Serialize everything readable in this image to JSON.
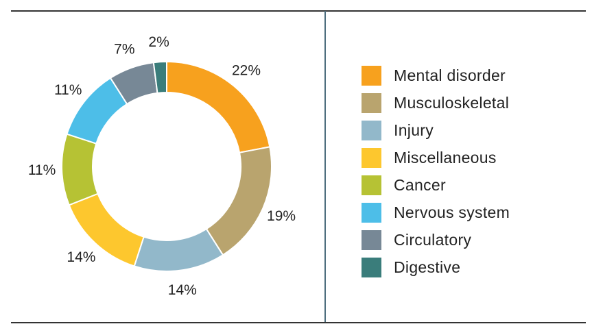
{
  "chart_data": {
    "type": "pie",
    "variant": "donut",
    "title": "",
    "start_angle_deg": 0,
    "direction": "clockwise",
    "legend_position": "right",
    "slices": [
      {
        "category": "Mental disorder",
        "value": 22,
        "label": "22%",
        "color": "#f7a11e"
      },
      {
        "category": "Musculoskeletal",
        "value": 19,
        "label": "19%",
        "color": "#b9a46e"
      },
      {
        "category": "Injury",
        "value": 14,
        "label": "14%",
        "color": "#92b8ca"
      },
      {
        "category": "Miscellaneous",
        "value": 14,
        "label": "14%",
        "color": "#fdc72e"
      },
      {
        "category": "Cancer",
        "value": 11,
        "label": "11%",
        "color": "#b6c234"
      },
      {
        "category": "Nervous system",
        "value": 11,
        "label": "11%",
        "color": "#4dbee8"
      },
      {
        "category": "Circulatory",
        "value": 7,
        "label": "7%",
        "color": "#778896"
      },
      {
        "category": "Digestive",
        "value": 2,
        "label": "2%",
        "color": "#3a7d7b"
      }
    ]
  },
  "legend": {
    "items": [
      {
        "label": "Mental disorder",
        "color": "#f7a11e"
      },
      {
        "label": "Musculoskeletal",
        "color": "#b9a46e"
      },
      {
        "label": "Injury",
        "color": "#92b8ca"
      },
      {
        "label": "Miscellaneous",
        "color": "#fdc72e"
      },
      {
        "label": "Cancer",
        "color": "#b6c234"
      },
      {
        "label": "Nervous system",
        "color": "#4dbee8"
      },
      {
        "label": "Circulatory",
        "color": "#778896"
      },
      {
        "label": "Digestive",
        "color": "#3a7d7b"
      }
    ]
  }
}
